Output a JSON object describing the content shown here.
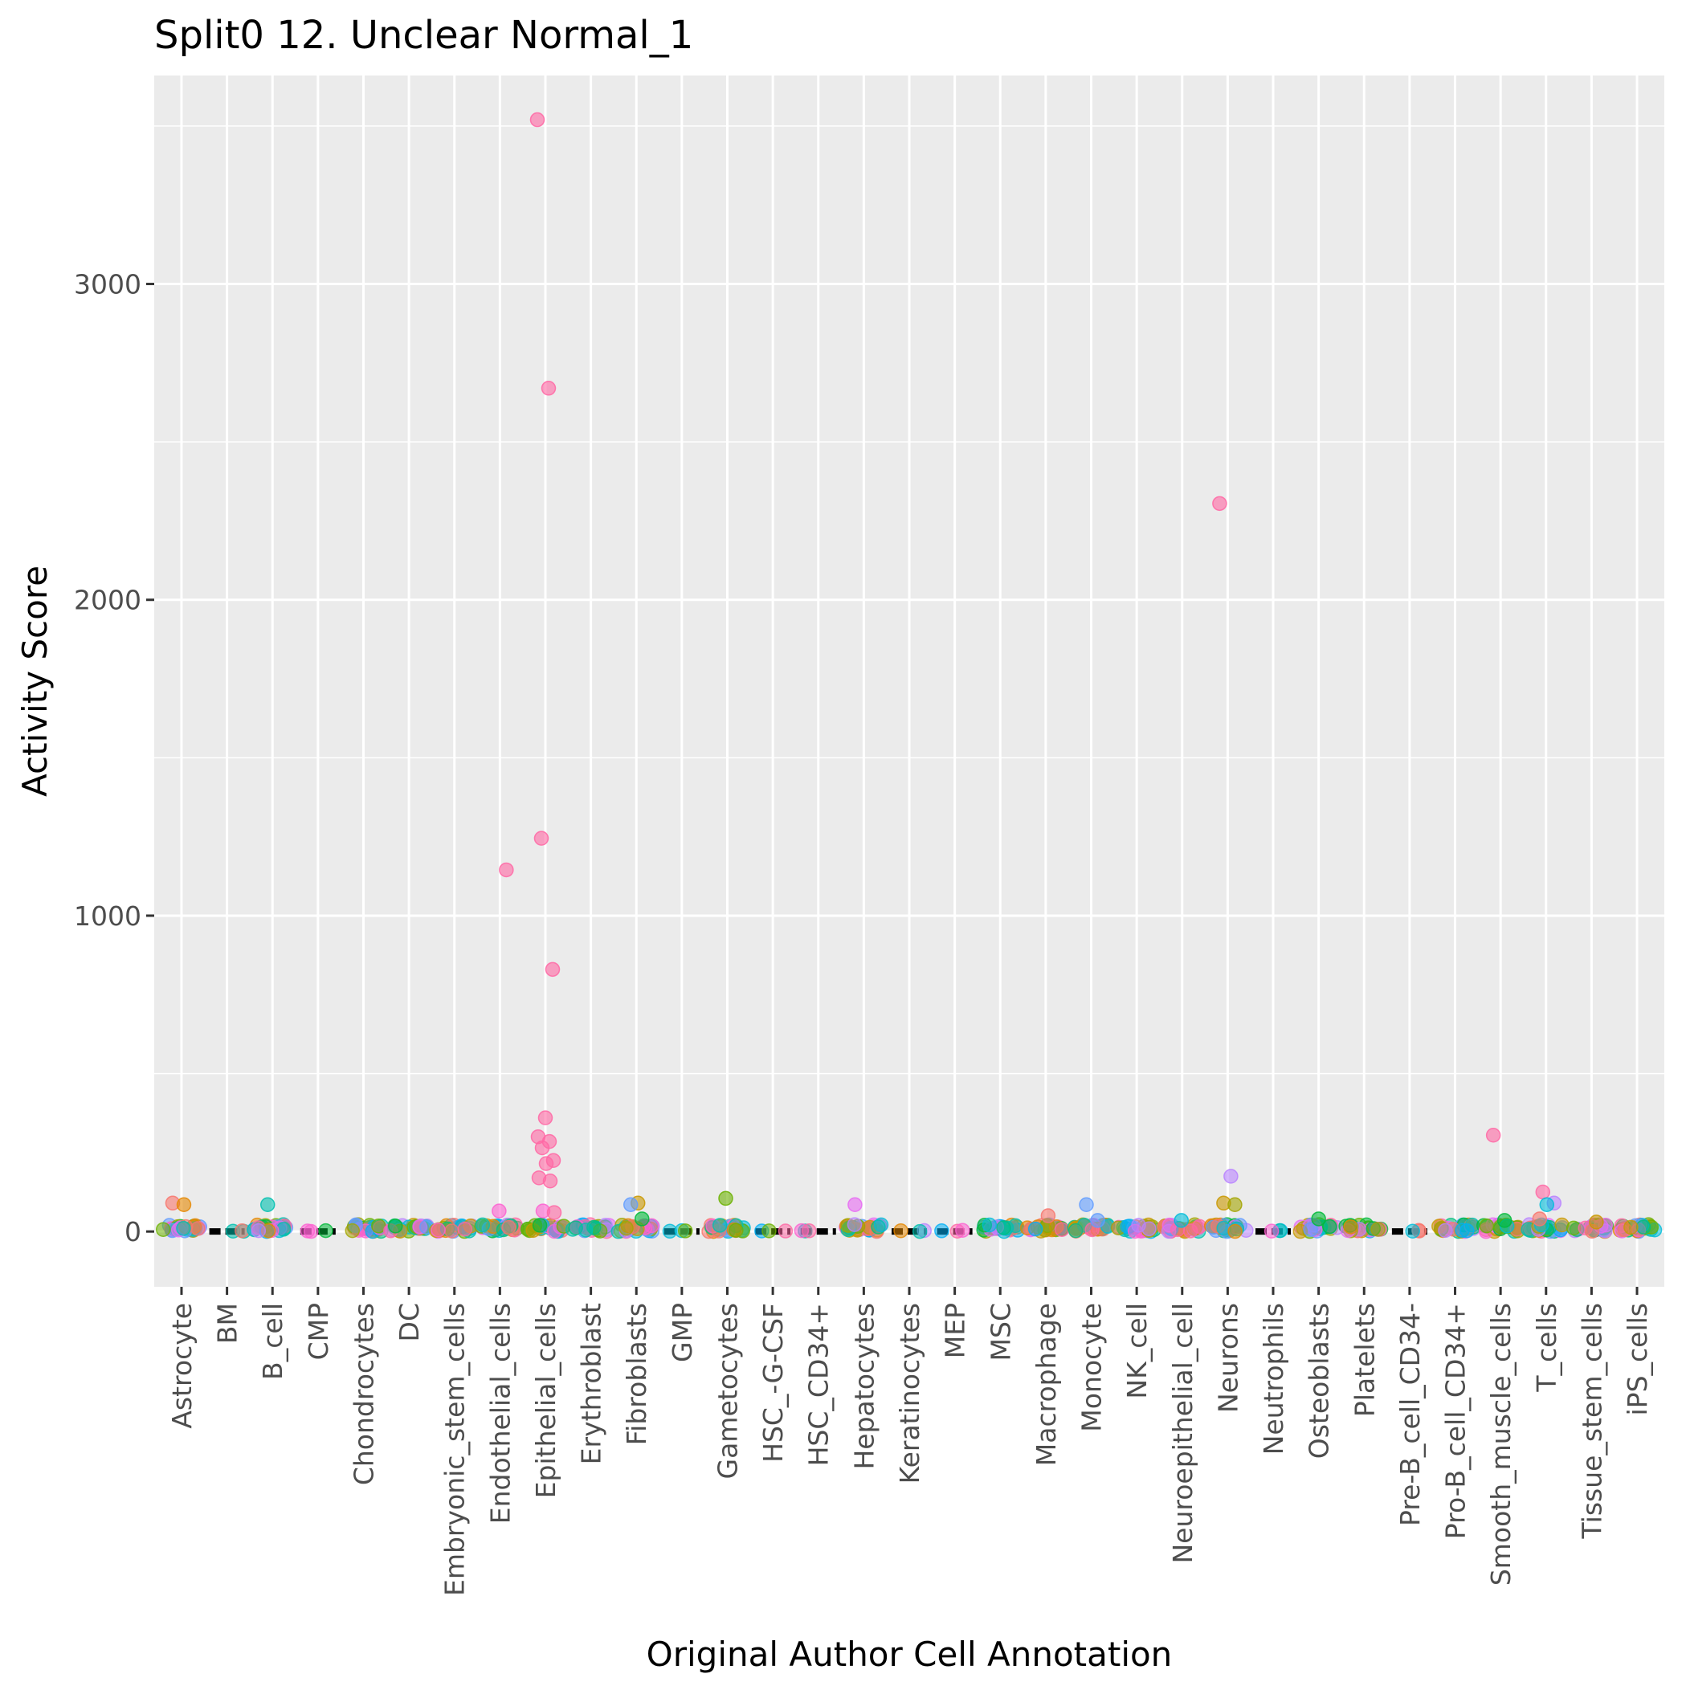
{
  "chart_data": {
    "type": "scatter",
    "title": "Split0 12. Unclear Normal_1",
    "xlabel": "Original Author Cell Annotation",
    "ylabel": "Activity Score",
    "ylim": [
      -175,
      3660
    ],
    "y_ticks": [
      0,
      1000,
      2000,
      3000
    ],
    "y_tick_labels": [
      "0",
      "1000",
      "2000",
      "3000"
    ],
    "grid": true,
    "legend": "none",
    "panel_background": "#ebebeb",
    "categories": [
      "Astrocyte",
      "BM",
      "B_cell",
      "CMP",
      "Chondrocytes",
      "DC",
      "Embryonic_stem_cells",
      "Endothelial_cells",
      "Epithelial_cells",
      "Erythroblast",
      "Fibroblasts",
      "GMP",
      "Gametocytes",
      "HSC_-G-CSF",
      "HSC_CD34+",
      "Hepatocytes",
      "Keratinocytes",
      "MEP",
      "MSC",
      "Macrophage",
      "Monocyte",
      "NK_cell",
      "Neuroepithelial_cell",
      "Neurons",
      "Neutrophils",
      "Osteoblasts",
      "Platelets",
      "Pre-B_cell_CD34-",
      "Pro-B_cell_CD34+",
      "Smooth_muscle_cells",
      "T_cells",
      "Tissue_stem_cells",
      "iPS_cells"
    ],
    "palette": [
      "#F8766D",
      "#E58700",
      "#C99800",
      "#A3A500",
      "#6BB100",
      "#00BA38",
      "#00BF7D",
      "#00C0AF",
      "#00BCD8",
      "#00B0F6",
      "#619CFF",
      "#B983FF",
      "#E76BF3",
      "#FD61D1",
      "#FF67A4"
    ],
    "outliers": [
      {
        "category": "Astrocyte",
        "value": 90,
        "color": "#F8766D"
      },
      {
        "category": "Astrocyte",
        "value": 85,
        "color": "#E58700"
      },
      {
        "category": "B_cell",
        "value": 85,
        "color": "#00C0AF"
      },
      {
        "category": "Endothelial_cells",
        "value": 1145,
        "color": "#FF67A4"
      },
      {
        "category": "Endothelial_cells",
        "value": 65,
        "color": "#FD61D1"
      },
      {
        "category": "Epithelial_cells",
        "value": 3520,
        "color": "#FF67A4"
      },
      {
        "category": "Epithelial_cells",
        "value": 2670,
        "color": "#FF67A4"
      },
      {
        "category": "Epithelial_cells",
        "value": 1245,
        "color": "#FF67A4"
      },
      {
        "category": "Epithelial_cells",
        "value": 830,
        "color": "#FF67A4"
      },
      {
        "category": "Epithelial_cells",
        "value": 360,
        "color": "#FF67A4"
      },
      {
        "category": "Epithelial_cells",
        "value": 300,
        "color": "#FF67A4"
      },
      {
        "category": "Epithelial_cells",
        "value": 285,
        "color": "#FF67A4"
      },
      {
        "category": "Epithelial_cells",
        "value": 265,
        "color": "#FF67A4"
      },
      {
        "category": "Epithelial_cells",
        "value": 225,
        "color": "#FF67A4"
      },
      {
        "category": "Epithelial_cells",
        "value": 215,
        "color": "#FF67A4"
      },
      {
        "category": "Epithelial_cells",
        "value": 170,
        "color": "#FF67A4"
      },
      {
        "category": "Epithelial_cells",
        "value": 160,
        "color": "#FF67A4"
      },
      {
        "category": "Epithelial_cells",
        "value": 65,
        "color": "#FD61D1"
      },
      {
        "category": "Epithelial_cells",
        "value": 60,
        "color": "#FF67A4"
      },
      {
        "category": "Fibroblasts",
        "value": 90,
        "color": "#C99800"
      },
      {
        "category": "Fibroblasts",
        "value": 85,
        "color": "#619CFF"
      },
      {
        "category": "Fibroblasts",
        "value": 40,
        "color": "#00BA38"
      },
      {
        "category": "Gametocytes",
        "value": 105,
        "color": "#6BB100"
      },
      {
        "category": "Hepatocytes",
        "value": 85,
        "color": "#E76BF3"
      },
      {
        "category": "Macrophage",
        "value": 50,
        "color": "#F8766D"
      },
      {
        "category": "Monocyte",
        "value": 85,
        "color": "#619CFF"
      },
      {
        "category": "Monocyte",
        "value": 35,
        "color": "#619CFF"
      },
      {
        "category": "Neuroepithelial_cell",
        "value": 35,
        "color": "#00BCD8"
      },
      {
        "category": "Neurons",
        "value": 2305,
        "color": "#FF67A4"
      },
      {
        "category": "Neurons",
        "value": 175,
        "color": "#B983FF"
      },
      {
        "category": "Neurons",
        "value": 90,
        "color": "#C99800"
      },
      {
        "category": "Neurons",
        "value": 85,
        "color": "#A3A500"
      },
      {
        "category": "Osteoblasts",
        "value": 40,
        "color": "#00BA38"
      },
      {
        "category": "Smooth_muscle_cells",
        "value": 305,
        "color": "#FF67A4"
      },
      {
        "category": "Smooth_muscle_cells",
        "value": 35,
        "color": "#00BA38"
      },
      {
        "category": "T_cells",
        "value": 125,
        "color": "#FF67A4"
      },
      {
        "category": "T_cells",
        "value": 90,
        "color": "#B983FF"
      },
      {
        "category": "T_cells",
        "value": 85,
        "color": "#00BCD8"
      },
      {
        "category": "T_cells",
        "value": 40,
        "color": "#F8766D"
      },
      {
        "category": "Tissue_stem_cells",
        "value": 30,
        "color": "#C99800"
      }
    ],
    "sparse_categories": [
      "BM",
      "CMP",
      "GMP",
      "HSC_-G-CSF",
      "HSC_CD34+",
      "Keratinocytes",
      "MEP",
      "Neutrophils",
      "Pre-B_cell_CD34-"
    ]
  }
}
